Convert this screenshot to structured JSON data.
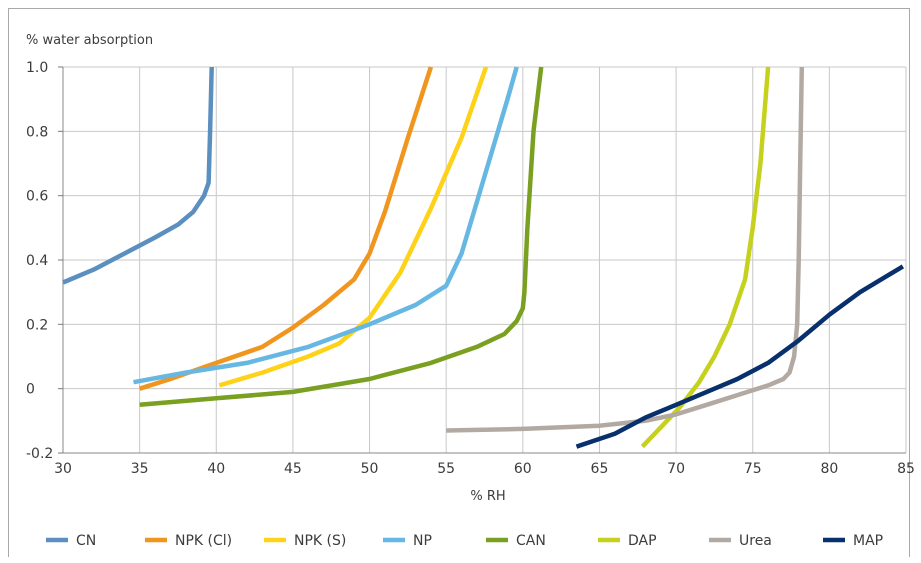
{
  "chart_data": {
    "type": "line",
    "ylabel": "% water absorption",
    "xlabel": "% RH",
    "xlim": [
      30,
      85
    ],
    "ylim": [
      -0.2,
      1.0
    ],
    "x_ticks": [
      "30",
      "35",
      "40",
      "45",
      "50",
      "55",
      "60",
      "65",
      "70",
      "75",
      "80",
      "85"
    ],
    "y_ticks": [
      "-0.2",
      "0",
      "0.2",
      "0.4",
      "0.6",
      "0.8",
      "1.0"
    ],
    "grid": true,
    "legend_position": "bottom",
    "series": [
      {
        "name": "CN",
        "color": "#5b8fbf",
        "points": [
          [
            30,
            0.33
          ],
          [
            32,
            0.37
          ],
          [
            34,
            0.42
          ],
          [
            36,
            0.47
          ],
          [
            37.5,
            0.51
          ],
          [
            38.5,
            0.55
          ],
          [
            39.2,
            0.6
          ],
          [
            39.5,
            0.64
          ],
          [
            39.6,
            0.8
          ],
          [
            39.7,
            1.0
          ]
        ]
      },
      {
        "name": "NPK (Cl)",
        "color": "#f0951e",
        "points": [
          [
            35,
            0.0
          ],
          [
            37,
            0.03
          ],
          [
            40,
            0.08
          ],
          [
            43,
            0.13
          ],
          [
            45,
            0.19
          ],
          [
            47,
            0.26
          ],
          [
            49,
            0.34
          ],
          [
            50,
            0.42
          ],
          [
            51,
            0.55
          ],
          [
            52.5,
            0.78
          ],
          [
            54,
            1.0
          ]
        ]
      },
      {
        "name": "NPK (S)",
        "color": "#ffd21a",
        "points": [
          [
            40.2,
            0.01
          ],
          [
            43,
            0.05
          ],
          [
            46,
            0.1
          ],
          [
            48,
            0.14
          ],
          [
            50,
            0.22
          ],
          [
            52,
            0.36
          ],
          [
            54,
            0.56
          ],
          [
            56,
            0.78
          ],
          [
            57.6,
            1.0
          ]
        ]
      },
      {
        "name": "NP",
        "color": "#66b8e3",
        "points": [
          [
            34.6,
            0.02
          ],
          [
            38,
            0.05
          ],
          [
            42,
            0.08
          ],
          [
            46,
            0.13
          ],
          [
            50,
            0.2
          ],
          [
            53,
            0.26
          ],
          [
            55,
            0.32
          ],
          [
            56,
            0.42
          ],
          [
            57.5,
            0.66
          ],
          [
            59,
            0.9
          ],
          [
            59.6,
            1.0
          ]
        ]
      },
      {
        "name": "CAN",
        "color": "#7aa021",
        "points": [
          [
            35,
            -0.05
          ],
          [
            40,
            -0.03
          ],
          [
            45,
            -0.01
          ],
          [
            50,
            0.03
          ],
          [
            54,
            0.08
          ],
          [
            57,
            0.13
          ],
          [
            58.8,
            0.17
          ],
          [
            59.6,
            0.21
          ],
          [
            60,
            0.25
          ],
          [
            60.1,
            0.3
          ],
          [
            60.3,
            0.5
          ],
          [
            60.7,
            0.8
          ],
          [
            61.2,
            1.0
          ]
        ]
      },
      {
        "name": "DAP",
        "color": "#c5d11d",
        "points": [
          [
            67.8,
            -0.18
          ],
          [
            69,
            -0.12
          ],
          [
            70.2,
            -0.06
          ],
          [
            71.5,
            0.02
          ],
          [
            72.5,
            0.1
          ],
          [
            73.5,
            0.2
          ],
          [
            74.5,
            0.34
          ],
          [
            75,
            0.5
          ],
          [
            75.5,
            0.7
          ],
          [
            76,
            1.0
          ]
        ]
      },
      {
        "name": "Urea",
        "color": "#b2aaa2",
        "points": [
          [
            55,
            -0.13
          ],
          [
            60,
            -0.125
          ],
          [
            65,
            -0.115
          ],
          [
            68,
            -0.1
          ],
          [
            70,
            -0.08
          ],
          [
            72,
            -0.05
          ],
          [
            74,
            -0.02
          ],
          [
            76,
            0.01
          ],
          [
            77,
            0.03
          ],
          [
            77.4,
            0.05
          ],
          [
            77.7,
            0.1
          ],
          [
            77.9,
            0.2
          ],
          [
            78,
            0.4
          ],
          [
            78.1,
            0.7
          ],
          [
            78.2,
            1.0
          ]
        ]
      },
      {
        "name": "MAP",
        "color": "#07306c",
        "points": [
          [
            63.5,
            -0.18
          ],
          [
            66,
            -0.14
          ],
          [
            68,
            -0.09
          ],
          [
            70,
            -0.05
          ],
          [
            72,
            -0.01
          ],
          [
            74,
            0.03
          ],
          [
            76,
            0.08
          ],
          [
            78,
            0.15
          ],
          [
            80,
            0.23
          ],
          [
            82,
            0.3
          ],
          [
            84.8,
            0.38
          ]
        ]
      }
    ]
  }
}
